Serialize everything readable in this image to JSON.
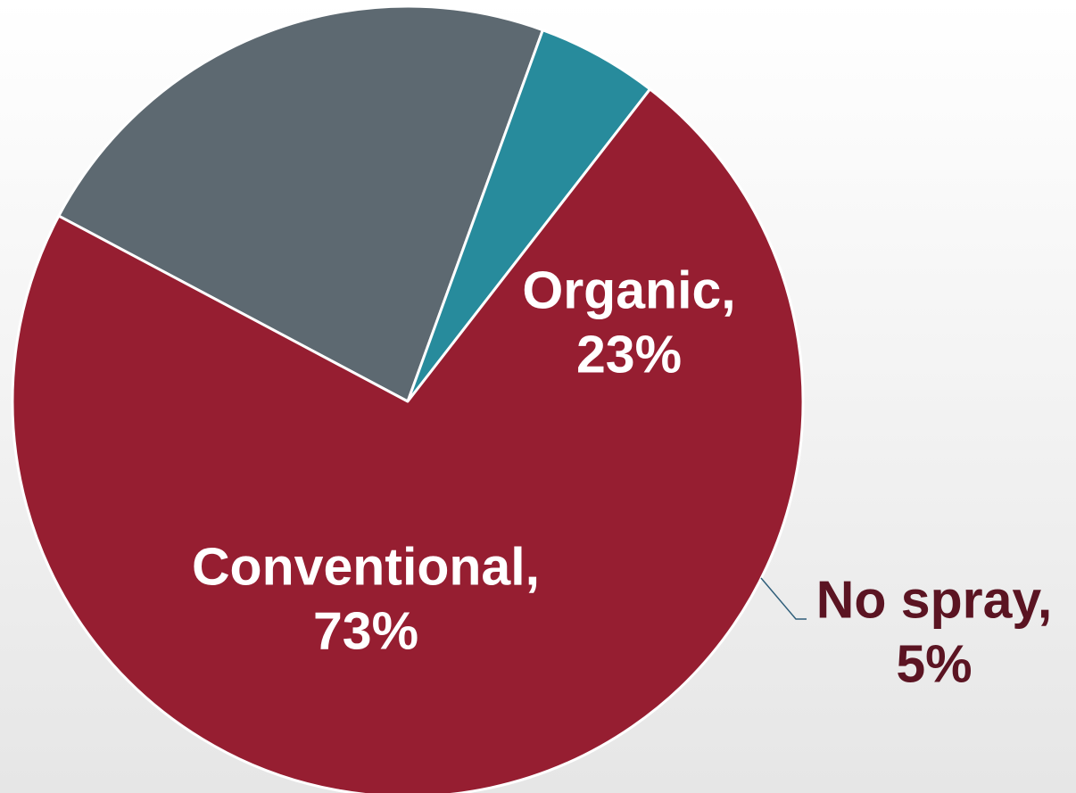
{
  "chart_data": {
    "type": "pie",
    "title": "",
    "slices": [
      {
        "label": "Organic,",
        "percent_label": "23%",
        "value": 23,
        "color": "#5d6971",
        "label_color": "#ffffff"
      },
      {
        "label": "No spray,",
        "percent_label": "5%",
        "value": 5,
        "color": "#278b9c",
        "label_color": "#5b1422"
      },
      {
        "label": "Conventional,",
        "percent_label": "73%",
        "value": 73,
        "color": "#961e31",
        "label_color": "#ffffff"
      }
    ],
    "leader_line_color": "#2f5e7a",
    "legend": "none"
  }
}
